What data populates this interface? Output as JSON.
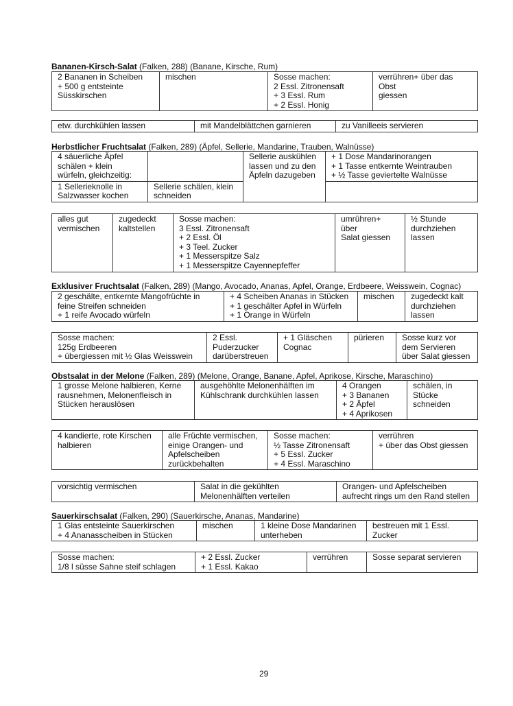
{
  "page_number": "29",
  "recipes": [
    {
      "name": "Bananen-Kirsch-Salat",
      "meta": " (Falken, 288) (Banane, Kirsche, Rum)",
      "tables": [
        [
          [
            "2 Bananen in Scheiben\n+ 500 g entsteinte\nSüsskirschen",
            "mischen",
            "Sosse machen:\n2 Essl. Zitronensaft\n+ 3 Essl. Rum\n+ 2 Essl. Honig",
            "verrühren+ über das Obst\ngiessen"
          ]
        ],
        [
          [
            "etw. durchkühlen lassen",
            "mit Mandelblättchen garnieren",
            "zu Vanilleeis servieren"
          ]
        ]
      ]
    },
    {
      "name": "Herbstlicher Fruchtsalat",
      "meta": " (Falken, 289) (Äpfel, Sellerie, Mandarine, Trauben, Walnüsse)",
      "tables": [
        [
          [
            "4 säuerliche Äpfel\nschälen + klein\nwürfeln, gleichzeitig:",
            "",
            "Sellerie auskühlen\nlassen und zu den\nÄpfeln dazugeben",
            "+ 1 Dose Mandarinorangen\n+ 1 Tasse entkernte Weintrauben\n+ ½ Tasse geviertelte Walnüsse"
          ],
          [
            "1 Sellerieknolle in\nSalzwasser kochen",
            "Sellerie schälen, klein\nschneiden",
            ""
          ]
        ],
        [
          [
            "alles gut\nvermischen",
            "zugedeckt\nkaltstellen",
            "Sosse machen:\n3 Essl. Zitronensaft\n+ 2 Essl. Öl\n+ 3 Teel. Zucker\n+ 1 Messerspitze Salz\n+ 1 Messerspitze Cayennepfeffer",
            "umrühren+ über\nSalat giessen",
            "½ Stunde\ndurchziehen\nlassen"
          ]
        ]
      ]
    },
    {
      "name": "Exklusiver Fruchtsalat",
      "meta": " (Falken, 289) (Mango, Avocado, Ananas, Apfel, Orange, Erdbeere, Weisswein, Cognac)",
      "tables": [
        [
          [
            "2 geschälte, entkernte Mangofrüchte in\nfeine Streifen schneiden\n+ 1 reife Avocado würfeln",
            "+ 4 Scheiben Ananas in Stücken\n+ 1 geschälter Apfel in Würfeln\n+ 1 Orange in Würfeln",
            "mischen",
            "zugedeckt kalt\ndurchziehen\nlassen"
          ]
        ],
        [
          [
            "Sosse machen:\n125g Erdbeeren\n+ übergiessen mit ½ Glas Weisswein",
            "2 Essl.\nPuderzucker\ndarüberstreuen",
            "+ 1 Gläschen\nCognac",
            "pürieren",
            "Sosse kurz vor\ndem Servieren\nüber Salat giessen"
          ]
        ]
      ]
    },
    {
      "name": "Obstsalat in der Melone",
      "meta": " (Falken, 289) (Melone, Orange, Banane, Apfel, Aprikose, Kirsche, Maraschino)",
      "tables": [
        [
          [
            "1 grosse Melone halbieren, Kerne\nrausnehmen, Melonenfleisch in\nStücken herauslösen",
            "ausgehöhlte Melonenhälften im\nKühlschrank durchkühlen lassen",
            "4 Orangen\n+ 3 Bananen\n+ 2 Äpfel\n+ 4 Aprikosen",
            "schälen, in\nStücke\nschneiden"
          ]
        ],
        [
          [
            "4 kandierte, rote Kirschen\nhalbieren",
            "alle Früchte vermischen,\neinige Orangen- und\nApfelscheiben\nzurückbehalten",
            "Sosse machen:\n½ Tasse Zitronensaft\n+ 5 Essl. Zucker\n+ 4 Essl. Maraschino",
            "verrühren\n+ über das Obst giessen"
          ]
        ],
        [
          [
            "vorsichtig vermischen",
            "Salat in die gekühlten\nMelonenhälften verteilen",
            "Orangen- und Apfelscheiben\naufrecht rings um den Rand stellen"
          ]
        ]
      ]
    },
    {
      "name": "Sauerkirschsalat",
      "meta": " (Falken, 290) (Sauerkirsche, Ananas, Mandarine)",
      "tables": [
        [
          [
            "1 Glas entsteinte Sauerkirschen\n+ 4 Ananasscheiben in Stücken",
            "mischen",
            "1 kleine Dose Mandarinen\nunterheben",
            "bestreuen mit 1 Essl.\nZucker"
          ]
        ],
        [
          [
            "Sosse machen:\n1/8 l süsse Sahne steif schlagen",
            "+ 2 Essl. Zucker\n+ 1 Essl. Kakao",
            "verrühren",
            "Sosse separat servieren"
          ]
        ]
      ]
    }
  ]
}
